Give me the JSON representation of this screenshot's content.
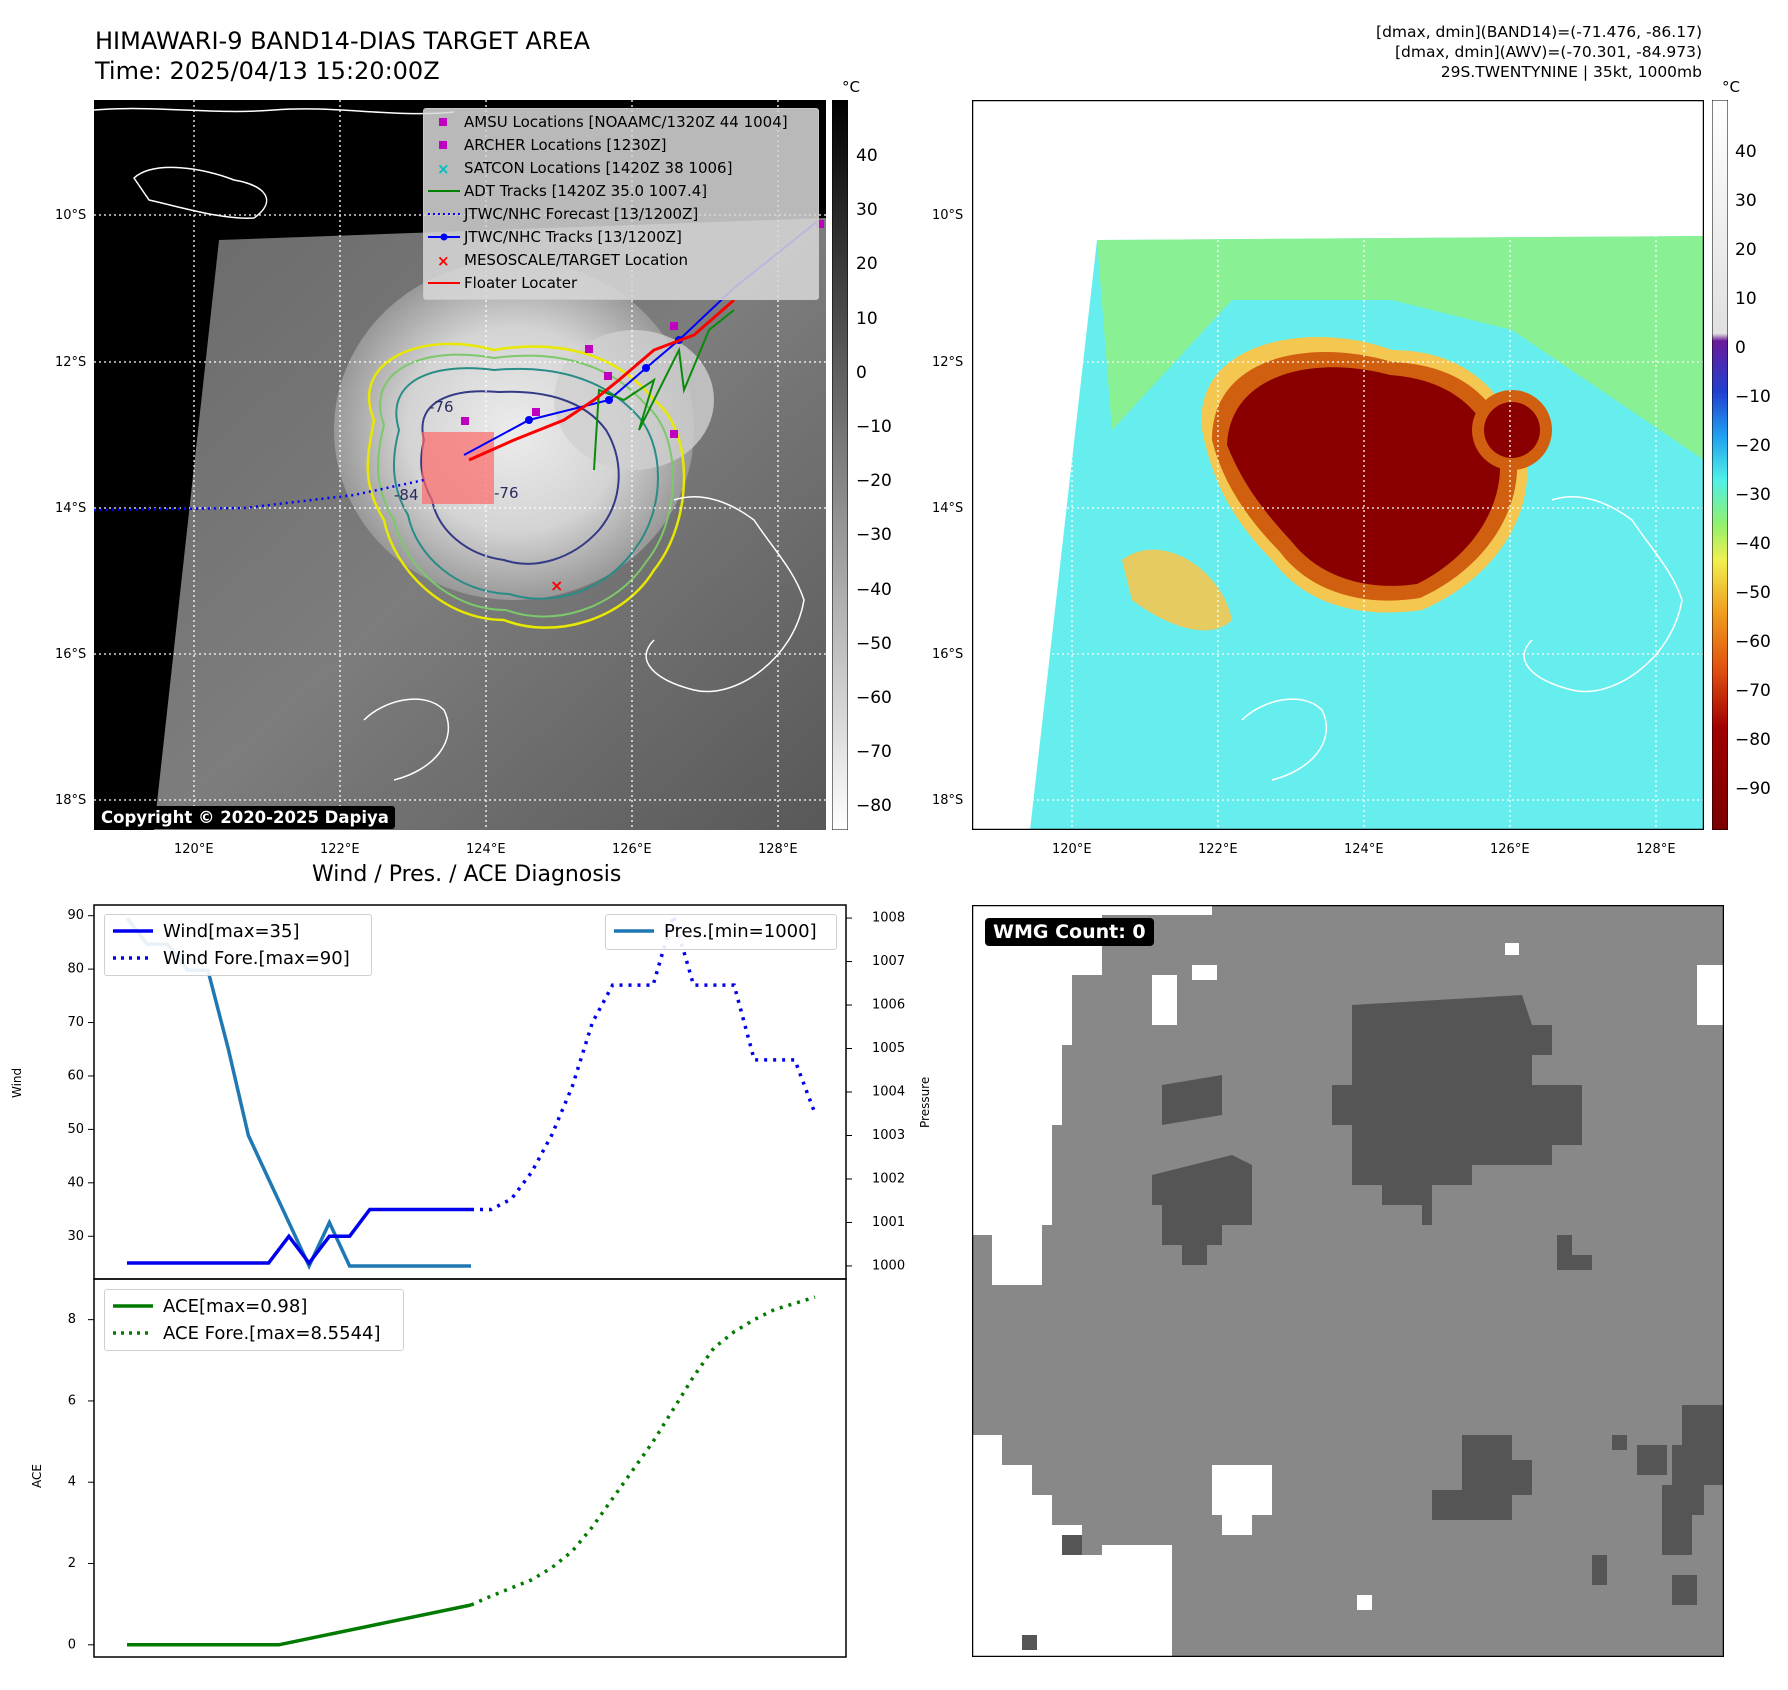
{
  "header": {
    "title_line1": "HIMAWARI-9 BAND14-DIAS TARGET AREA",
    "title_line2": "Time: 2025/04/13 15:20:00Z",
    "info_line1": "[dmax, dmin](BAND14)=(-71.476, -86.17)",
    "info_line2": "[dmax, dmin](AWV)=(-70.301, -84.973)",
    "info_line3": "29S.TWENTYNINE | 35kt, 1000mb"
  },
  "map": {
    "lon_labels": [
      "120°E",
      "122°E",
      "124°E",
      "126°E",
      "128°E"
    ],
    "lat_labels": [
      "10°S",
      "12°S",
      "14°S",
      "16°S",
      "18°S"
    ],
    "copyright": "Copyright © 2020-2025 Dapiya",
    "contour_labels": [
      "-76",
      "-76",
      "-84"
    ],
    "legend": [
      {
        "label": "AMSU Locations [NOAAMC/1320Z 44 1004]",
        "color": "#c000c0",
        "marker": "square"
      },
      {
        "label": "ARCHER Locations [1230Z]",
        "color": "#c000c0",
        "marker": "square"
      },
      {
        "label": "SATCON Locations [1420Z 38 1006]",
        "color": "#00bfbf",
        "marker": "x"
      },
      {
        "label": "ADT Tracks [1420Z 35.0 1007.4]",
        "color": "#008000",
        "marker": "line"
      },
      {
        "label": "JTWC/NHC Forecast [13/1200Z]",
        "color": "#0000ff",
        "marker": "dotted"
      },
      {
        "label": "JTWC/NHC Tracks [13/1200Z]",
        "color": "#0000ff",
        "marker": "line-dot"
      },
      {
        "label": "MESOSCALE/TARGET Location",
        "color": "#ff0000",
        "marker": "x"
      },
      {
        "label": "Floater Locater",
        "color": "#ff0000",
        "marker": "line"
      }
    ]
  },
  "colorbar_gray": {
    "unit": "°C",
    "ticks": [
      "40",
      "30",
      "20",
      "10",
      "0",
      "−10",
      "−20",
      "−30",
      "−40",
      "−50",
      "−60",
      "−70",
      "−80"
    ]
  },
  "colorbar_color": {
    "unit": "°C",
    "ticks": [
      "40",
      "30",
      "20",
      "10",
      "0",
      "−10",
      "−20",
      "−30",
      "−40",
      "−50",
      "−60",
      "−70",
      "−80",
      "−90"
    ]
  },
  "wmg": {
    "label": "WMG Count: 0"
  },
  "diag": {
    "title": "Wind / Pres. / ACE Diagnosis",
    "wind_ylabel": "Wind",
    "pres_ylabel": "Pressure",
    "ace_ylabel": "ACE",
    "wind_ticks": [
      "90",
      "80",
      "70",
      "60",
      "50",
      "40",
      "30"
    ],
    "pres_ticks": [
      "1008",
      "1007",
      "1006",
      "1005",
      "1004",
      "1003",
      "1002",
      "1001",
      "1000"
    ],
    "ace_ticks": [
      "8",
      "6",
      "4",
      "2",
      "0"
    ],
    "legend_wind": "Wind[max=35]",
    "legend_wind_fore": "Wind Fore.[max=90]",
    "legend_pres": "Pres.[min=1000]",
    "legend_ace": "ACE[max=0.98]",
    "legend_ace_fore": "ACE Fore.[max=8.5544]"
  },
  "chart_data": [
    {
      "type": "line",
      "title": "Wind / Pres. / ACE Diagnosis",
      "ylabel": "Wind",
      "ylim": [
        22,
        92
      ],
      "series": [
        {
          "name": "Wind[max=35]",
          "color": "#0000ee",
          "style": "solid",
          "x": [
            0,
            1,
            2,
            3,
            4,
            5,
            6,
            7,
            8,
            9,
            10,
            11,
            12,
            13,
            14,
            15,
            16,
            17
          ],
          "y": [
            25,
            25,
            25,
            25,
            25,
            25,
            25,
            25,
            30,
            25,
            30,
            30,
            35,
            35,
            35,
            35,
            35,
            35
          ]
        },
        {
          "name": "Wind Fore.[max=90]",
          "color": "#0000ee",
          "style": "dotted",
          "x": [
            17,
            18,
            19,
            20,
            21,
            22,
            23,
            24,
            25,
            26,
            27,
            28,
            29,
            30,
            31,
            32,
            33,
            34
          ],
          "y": [
            35,
            35,
            37,
            42,
            49,
            58,
            70,
            77,
            77,
            77,
            90,
            77,
            77,
            77,
            63,
            63,
            63,
            53
          ]
        }
      ]
    },
    {
      "type": "line",
      "ylabel": "Pressure",
      "ylim": [
        999.7,
        1008.3
      ],
      "series": [
        {
          "name": "Pres.[min=1000]",
          "color": "#1f77b4",
          "style": "solid",
          "x": [
            0,
            1,
            2,
            3,
            4,
            5,
            6,
            7,
            8,
            9,
            10,
            11,
            12,
            13,
            14,
            15,
            16,
            17
          ],
          "y": [
            1008,
            1007.4,
            1007.4,
            1006.8,
            1006.8,
            1005,
            1003,
            1002,
            1001,
            1000,
            1001,
            1000,
            1000,
            1000,
            1000,
            1000,
            1000,
            1000
          ]
        }
      ]
    },
    {
      "type": "line",
      "ylabel": "ACE",
      "ylim": [
        -0.3,
        9.0
      ],
      "series": [
        {
          "name": "ACE[max=0.98]",
          "color": "#007a00",
          "style": "solid",
          "x": [
            0,
            7.5,
            17
          ],
          "y": [
            0,
            0,
            0.98
          ]
        },
        {
          "name": "ACE Fore.[max=8.5544]",
          "color": "#007a00",
          "style": "dotted",
          "x": [
            17,
            18,
            19,
            20,
            21,
            22,
            23,
            24,
            25,
            26,
            27,
            28,
            29,
            30,
            31,
            32,
            33,
            34
          ],
          "y": [
            0.98,
            1.2,
            1.4,
            1.6,
            1.9,
            2.3,
            2.9,
            3.6,
            4.3,
            5.0,
            5.8,
            6.6,
            7.3,
            7.7,
            8.0,
            8.25,
            8.4,
            8.5544
          ]
        }
      ]
    }
  ]
}
